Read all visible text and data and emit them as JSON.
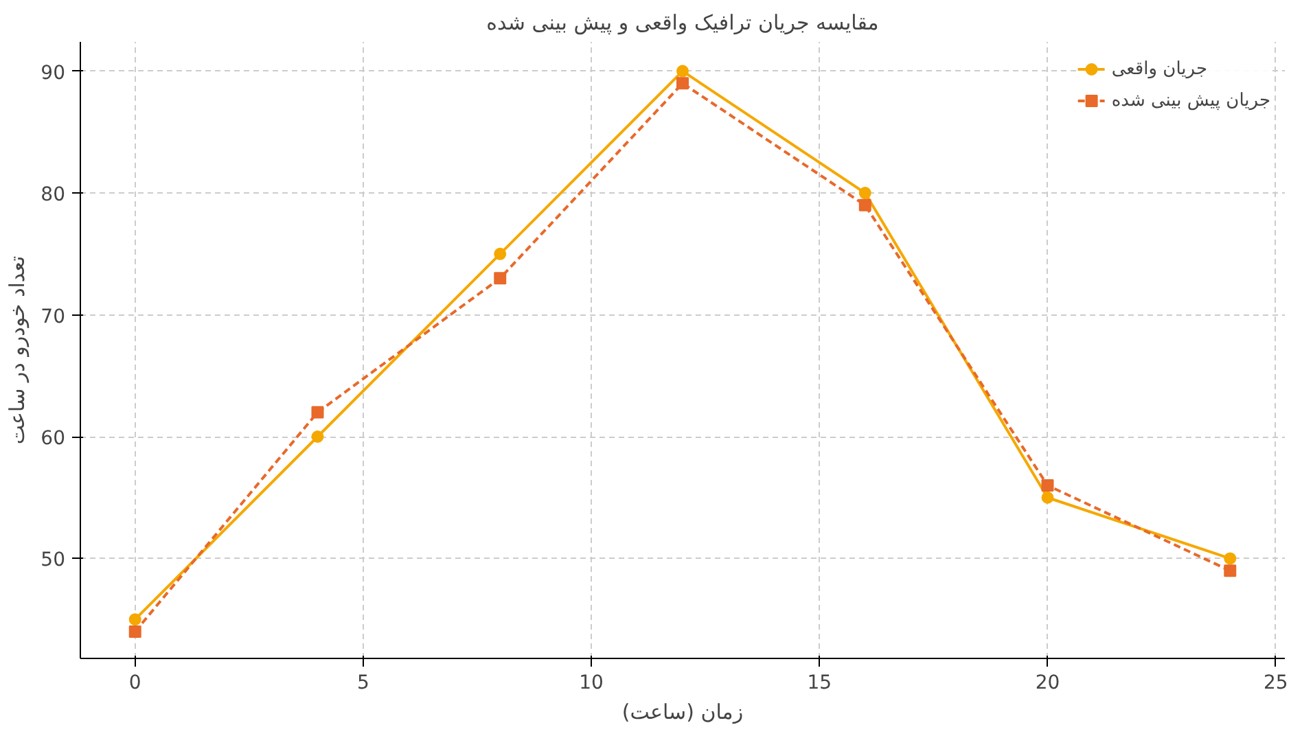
{
  "chart_data": {
    "type": "line",
    "title": "مقایسه جریان ترافیک واقعی و پیش بینی شده",
    "xlabel": "زمان (ساعت)",
    "ylabel": "تعداد خودرو در ساعت",
    "x": [
      0,
      4,
      8,
      12,
      16,
      20,
      24
    ],
    "series": [
      {
        "name": "جریان واقعی",
        "color": "#f5a800",
        "values": [
          45,
          60,
          75,
          90,
          80,
          55,
          50
        ],
        "marker": "circle",
        "line_style": "solid"
      },
      {
        "name": "جریان پیش بینی شده",
        "color": "#e8692a",
        "values": [
          44,
          62,
          73,
          89,
          79,
          56,
          49
        ],
        "marker": "square",
        "line_style": "dashed"
      }
    ],
    "xlim": [
      -1.2,
      25.2
    ],
    "ylim": [
      41.8,
      92.4
    ],
    "xticks": [
      0,
      5,
      10,
      15,
      20,
      25
    ],
    "yticks": [
      50,
      60,
      70,
      80,
      90
    ],
    "grid": true,
    "legend": "top right"
  }
}
